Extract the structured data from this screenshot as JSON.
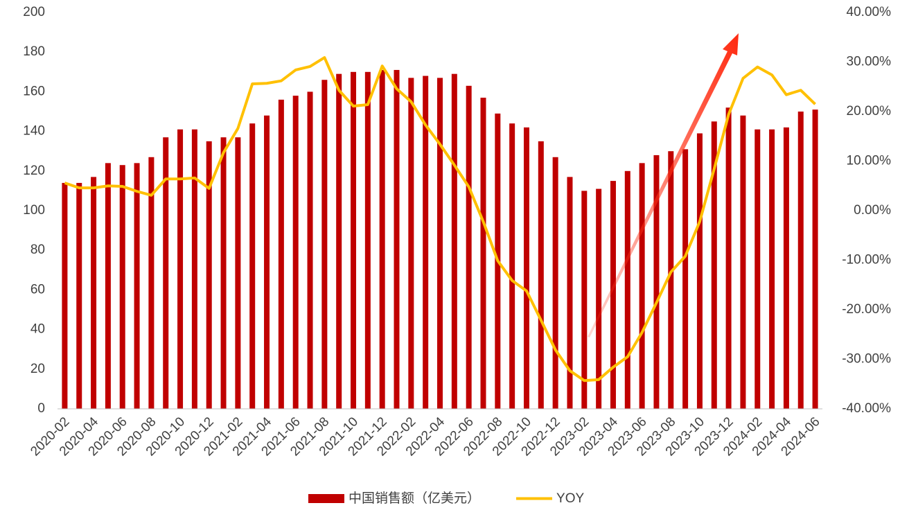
{
  "chart_data": {
    "type": "combo",
    "categories": [
      "2020-02",
      null,
      "2020-04",
      null,
      "2020-06",
      null,
      "2020-08",
      null,
      "2020-10",
      null,
      "2020-12",
      null,
      "2021-02",
      null,
      "2021-04",
      null,
      "2021-06",
      null,
      "2021-08",
      null,
      "2021-10",
      null,
      "2021-12",
      null,
      "2022-02",
      null,
      "2022-04",
      null,
      "2022-06",
      null,
      "2022-08",
      null,
      "2022-10",
      null,
      "2022-12",
      null,
      "2023-02",
      null,
      "2023-04",
      null,
      "2023-06",
      null,
      "2023-08",
      null,
      "2023-10",
      null,
      "2023-12",
      null,
      "2024-02",
      null,
      "2024-04",
      null,
      "2024-06"
    ],
    "series": [
      {
        "name": "中国销售额（亿美元）",
        "type": "bar",
        "color": "#c00000",
        "values": [
          114,
          114,
          117,
          124,
          123,
          124,
          127,
          137,
          141,
          141,
          135,
          137,
          137,
          144,
          148,
          156,
          158,
          160,
          166,
          169,
          170,
          170,
          171,
          171,
          167,
          168,
          167,
          169,
          163,
          157,
          149,
          144,
          142,
          135,
          127,
          117,
          110,
          111,
          115,
          120,
          124,
          128,
          130,
          131,
          139,
          145,
          152,
          148,
          141,
          141,
          142,
          150,
          151
        ]
      },
      {
        "name": "YOY",
        "type": "line",
        "color": "#ffc000",
        "axis": "y2",
        "values": [
          5.6,
          4.6,
          4.6,
          5.0,
          4.9,
          3.9,
          3.1,
          6.4,
          6.4,
          6.6,
          4.5,
          11.7,
          16.6,
          25.6,
          25.7,
          26.2,
          28.4,
          29.1,
          30.9,
          24.3,
          21.1,
          21.4,
          29.2,
          24.6,
          22.0,
          17.3,
          13.4,
          9.2,
          4.8,
          -2.2,
          -10.1,
          -14.1,
          -16.2,
          -22.1,
          -28.1,
          -32.3,
          -34.3,
          -34.1,
          -31.6,
          -29.5,
          -24.6,
          -18.6,
          -12.4,
          -9.2,
          -2.2,
          8.4,
          19.4,
          26.7,
          29.0,
          27.4,
          23.4,
          24.3,
          21.5
        ]
      }
    ],
    "ylim": [
      0,
      200
    ],
    "yticks": [
      0,
      20,
      40,
      60,
      80,
      100,
      120,
      140,
      160,
      180,
      200
    ],
    "y2lim": [
      -40,
      40
    ],
    "y2ticks": [
      {
        "value": -40,
        "label": "-40.00%"
      },
      {
        "value": -30,
        "label": "-30.00%"
      },
      {
        "value": -20,
        "label": "-20.00%"
      },
      {
        "value": -10,
        "label": "-10.00%"
      },
      {
        "value": 0,
        "label": "0.00%"
      },
      {
        "value": 10,
        "label": "10.00%"
      },
      {
        "value": 20,
        "label": "20.00%"
      },
      {
        "value": 30,
        "label": "30.00%"
      },
      {
        "value": 40,
        "label": "40.00%"
      }
    ],
    "grid": false,
    "legend": "bottom"
  }
}
